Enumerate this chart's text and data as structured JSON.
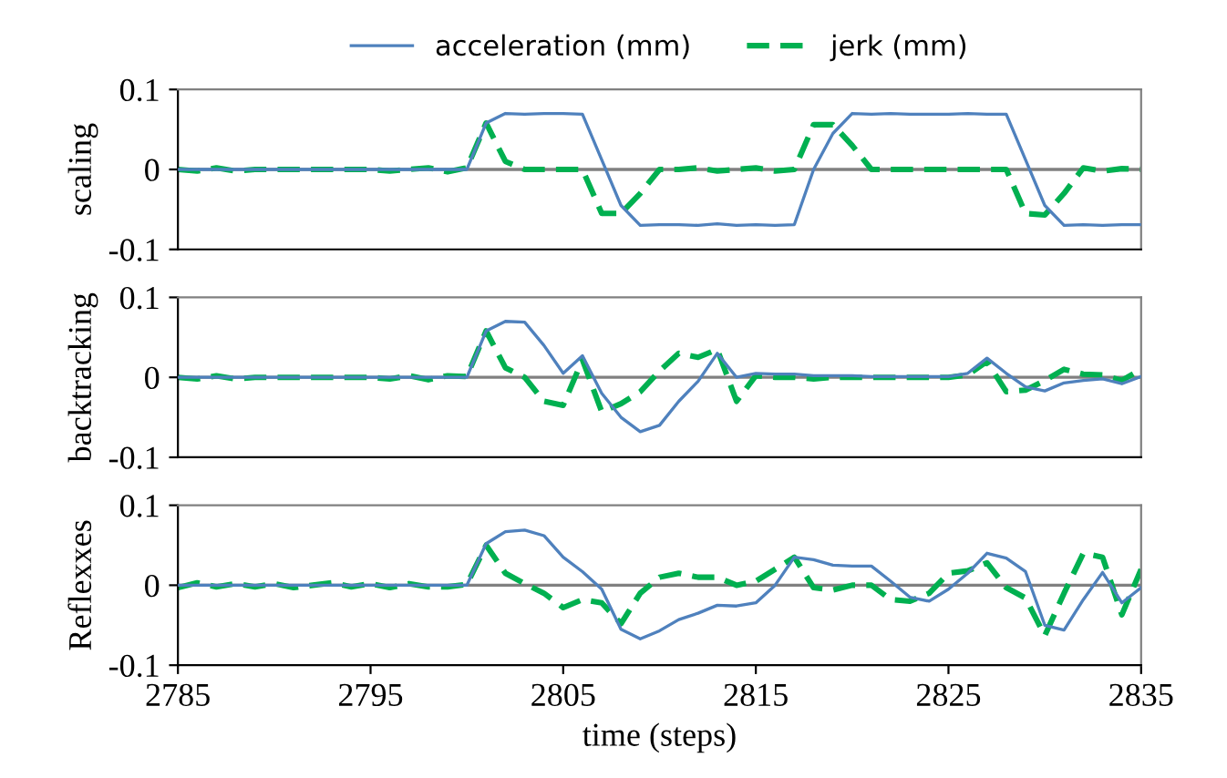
{
  "chart_data": [
    {
      "type": "line",
      "ylabel": "scaling",
      "x": [
        2785,
        2786,
        2787,
        2788,
        2789,
        2790,
        2791,
        2792,
        2793,
        2794,
        2795,
        2796,
        2797,
        2798,
        2799,
        2800,
        2801,
        2802,
        2803,
        2804,
        2805,
        2806,
        2807,
        2808,
        2809,
        2810,
        2811,
        2812,
        2813,
        2814,
        2815,
        2816,
        2817,
        2818,
        2819,
        2820,
        2821,
        2822,
        2823,
        2824,
        2825,
        2826,
        2827,
        2828,
        2829,
        2830,
        2831,
        2832,
        2833,
        2834,
        2835
      ],
      "xlim": [
        2785,
        2835
      ],
      "ylim": [
        -0.1,
        0.1
      ],
      "yticks": [
        -0.1,
        0,
        0.1
      ],
      "tick_labels": "y",
      "legend": "top",
      "grid": false,
      "ref_lines": [
        {
          "axis": "y",
          "value": 0,
          "color": "#808080"
        }
      ],
      "series": [
        {
          "name": "acceleration (mm)",
          "color": "#4f81bd",
          "line_style": "solid",
          "values": [
            0,
            0,
            0,
            0,
            0,
            0,
            0,
            0,
            0,
            0,
            0,
            0,
            0,
            0,
            0,
            0,
            0.058,
            0.07,
            0.069,
            0.07,
            0.07,
            0.069,
            0.012,
            -0.045,
            -0.07,
            -0.069,
            -0.069,
            -0.07,
            -0.068,
            -0.07,
            -0.069,
            -0.07,
            -0.069,
            0.0,
            0.045,
            0.07,
            0.069,
            0.07,
            0.069,
            0.069,
            0.069,
            0.07,
            0.069,
            0.069,
            0.012,
            -0.045,
            -0.07,
            -0.069,
            -0.07,
            -0.069,
            -0.069
          ]
        },
        {
          "name": "jerk (mm)",
          "color": "#00b050",
          "line_style": "dashed",
          "values": [
            0,
            -0.002,
            0.002,
            -0.002,
            0,
            0,
            0,
            0,
            0,
            0,
            0,
            -0.002,
            0,
            0.002,
            -0.003,
            0.002,
            0.058,
            0.01,
            0,
            0,
            0,
            0,
            -0.055,
            -0.055,
            -0.03,
            0,
            0,
            0.002,
            -0.002,
            0,
            0.002,
            -0.002,
            0.0,
            0.056,
            0.056,
            0.03,
            0,
            0,
            0,
            0,
            0,
            0,
            0,
            0,
            -0.055,
            -0.057,
            -0.03,
            0.002,
            -0.002,
            0.001,
            0
          ]
        }
      ]
    },
    {
      "type": "line",
      "ylabel": "backtracking",
      "x": [
        2785,
        2786,
        2787,
        2788,
        2789,
        2790,
        2791,
        2792,
        2793,
        2794,
        2795,
        2796,
        2797,
        2798,
        2799,
        2800,
        2801,
        2802,
        2803,
        2804,
        2805,
        2806,
        2807,
        2808,
        2809,
        2810,
        2811,
        2812,
        2813,
        2814,
        2815,
        2816,
        2817,
        2818,
        2819,
        2820,
        2821,
        2822,
        2823,
        2824,
        2825,
        2826,
        2827,
        2828,
        2829,
        2830,
        2831,
        2832,
        2833,
        2834,
        2835
      ],
      "xlim": [
        2785,
        2835
      ],
      "ylim": [
        -0.1,
        0.1
      ],
      "yticks": [
        -0.1,
        0,
        0.1
      ],
      "tick_labels": "y",
      "grid": false,
      "ref_lines": [
        {
          "axis": "y",
          "value": 0,
          "color": "#808080"
        }
      ],
      "series": [
        {
          "color": "#4f81bd",
          "line_style": "solid",
          "values": [
            0,
            0,
            0,
            0,
            0,
            0,
            0,
            0,
            0,
            0,
            0,
            0,
            0,
            0,
            0,
            0,
            0.058,
            0.07,
            0.069,
            0.04,
            0.005,
            0.027,
            -0.02,
            -0.05,
            -0.068,
            -0.06,
            -0.03,
            -0.005,
            0.03,
            0.0,
            0.005,
            0.004,
            0.004,
            0.002,
            0.002,
            0.002,
            0.001,
            0.001,
            0.001,
            0.001,
            0.001,
            0.005,
            0.024,
            0.005,
            -0.012,
            -0.017,
            -0.007,
            -0.004,
            -0.002,
            -0.008,
            0.001
          ]
        },
        {
          "color": "#00b050",
          "line_style": "dashed",
          "values": [
            0,
            -0.002,
            0.002,
            -0.002,
            0,
            0,
            0,
            0,
            0,
            0,
            0,
            -0.002,
            0.002,
            -0.003,
            0.002,
            0.001,
            0.058,
            0.012,
            0.0,
            -0.03,
            -0.035,
            0.022,
            -0.043,
            -0.033,
            -0.018,
            0.008,
            0.03,
            0.025,
            0.035,
            -0.03,
            0.002,
            0,
            0,
            -0.002,
            0,
            0,
            0,
            0,
            0,
            0,
            0,
            0.003,
            0.02,
            -0.018,
            -0.016,
            -0.004,
            0.01,
            0.004,
            0.003,
            -0.004,
            0.01
          ]
        }
      ]
    },
    {
      "type": "line",
      "ylabel": "Reflexxes",
      "xlabel": "time (steps)",
      "x": [
        2785,
        2786,
        2787,
        2788,
        2789,
        2790,
        2791,
        2792,
        2793,
        2794,
        2795,
        2796,
        2797,
        2798,
        2799,
        2800,
        2801,
        2802,
        2803,
        2804,
        2805,
        2806,
        2807,
        2808,
        2809,
        2810,
        2811,
        2812,
        2813,
        2814,
        2815,
        2816,
        2817,
        2818,
        2819,
        2820,
        2821,
        2822,
        2823,
        2824,
        2825,
        2826,
        2827,
        2828,
        2829,
        2830,
        2831,
        2832,
        2833,
        2834,
        2835
      ],
      "xlim": [
        2785,
        2835
      ],
      "xticks": [
        2785,
        2795,
        2805,
        2815,
        2825,
        2835
      ],
      "ylim": [
        -0.1,
        0.1
      ],
      "yticks": [
        -0.1,
        0,
        0.1
      ],
      "grid": false,
      "ref_lines": [
        {
          "axis": "y",
          "value": 0,
          "color": "#808080"
        }
      ],
      "series": [
        {
          "color": "#4f81bd",
          "line_style": "solid",
          "values": [
            0,
            0,
            0,
            0,
            0,
            0,
            0,
            0,
            0,
            0,
            0,
            0,
            0,
            0,
            0,
            0,
            0.052,
            0.067,
            0.069,
            0.062,
            0.035,
            0.017,
            -0.005,
            -0.055,
            -0.067,
            -0.057,
            -0.043,
            -0.035,
            -0.025,
            -0.026,
            -0.022,
            0.0,
            0.035,
            0.032,
            0.025,
            0.024,
            0.024,
            0.005,
            -0.015,
            -0.02,
            -0.005,
            0.015,
            0.04,
            0.034,
            0.017,
            -0.05,
            -0.056,
            -0.018,
            0.016,
            -0.022,
            -0.003
          ]
        },
        {
          "color": "#00b050",
          "line_style": "dashed",
          "values": [
            -0.003,
            0.003,
            -0.002,
            0.002,
            -0.002,
            0.002,
            -0.003,
            0,
            0.003,
            -0.002,
            0.002,
            -0.003,
            0.002,
            -0.002,
            -0.002,
            0.001,
            0.05,
            0.015,
            0.002,
            -0.01,
            -0.028,
            -0.018,
            -0.022,
            -0.048,
            -0.01,
            0.01,
            0.015,
            0.01,
            0.01,
            0.0,
            0.005,
            0.02,
            0.035,
            -0.003,
            -0.006,
            0.0,
            0.0,
            -0.018,
            -0.02,
            -0.01,
            0.015,
            0.018,
            0.028,
            -0.003,
            -0.016,
            -0.063,
            -0.01,
            0.04,
            0.035,
            -0.037,
            0.02
          ]
        }
      ]
    }
  ]
}
